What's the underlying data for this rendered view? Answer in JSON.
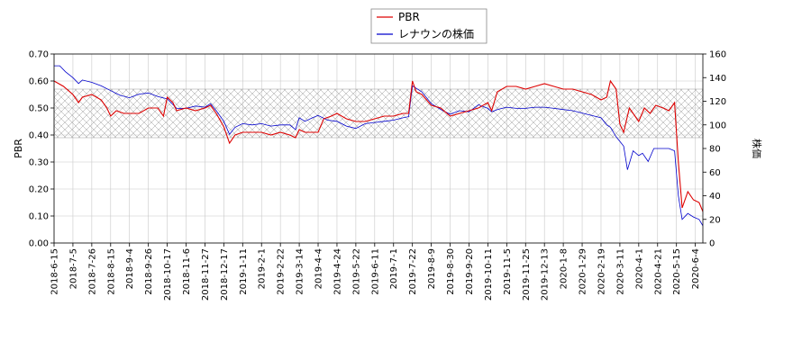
{
  "chart_data": {
    "type": "line",
    "xlabel": "",
    "ylabel_left": "PBR",
    "ylabel_right": "株価",
    "ylim_left": [
      0,
      0.7
    ],
    "ylim_right": [
      0,
      160
    ],
    "yticks_left": [
      "0.00",
      "0.10",
      "0.20",
      "0.30",
      "0.40",
      "0.50",
      "0.60",
      "0.70"
    ],
    "yticks_right": [
      "0",
      "20",
      "40",
      "60",
      "80",
      "100",
      "120",
      "140",
      "160"
    ],
    "x_ticks": [
      "2018-6-15",
      "2018-7-5",
      "2018-7-26",
      "2018-8-15",
      "2018-9-4",
      "2018-9-26",
      "2018-10-17",
      "2018-11-6",
      "2018-11-27",
      "2018-12-17",
      "2019-1-11",
      "2019-2-1",
      "2019-2-22",
      "2019-3-14",
      "2019-4-4",
      "2019-4-24",
      "2019-5-22",
      "2019-6-11",
      "2019-7-1",
      "2019-7-22",
      "2019-8-9",
      "2019-8-30",
      "2019-9-20",
      "2019-10-11",
      "2019-11-5",
      "2019-11-25",
      "2019-12-13",
      "2020-1-8",
      "2020-1-29",
      "2020-2-19",
      "2020-3-11",
      "2020-4-1",
      "2020-4-21",
      "2020-5-15",
      "2020-6-4"
    ],
    "grid": true,
    "legend_placement": "top-center",
    "band": {
      "axis": "left",
      "from": 0.39,
      "to": 0.57,
      "pattern": "crosshatch"
    },
    "series": [
      {
        "name": "PBR",
        "axis": "left",
        "color": "#dd0000",
        "points": [
          [
            0,
            0.6
          ],
          [
            0.5,
            0.58
          ],
          [
            1,
            0.55
          ],
          [
            1.3,
            0.52
          ],
          [
            1.5,
            0.54
          ],
          [
            2,
            0.55
          ],
          [
            2.5,
            0.53
          ],
          [
            2.8,
            0.5
          ],
          [
            3,
            0.47
          ],
          [
            3.3,
            0.49
          ],
          [
            3.7,
            0.48
          ],
          [
            4.5,
            0.48
          ],
          [
            5,
            0.5
          ],
          [
            5.5,
            0.5
          ],
          [
            5.8,
            0.47
          ],
          [
            6,
            0.54
          ],
          [
            6.3,
            0.52
          ],
          [
            6.5,
            0.49
          ],
          [
            7,
            0.5
          ],
          [
            7.5,
            0.49
          ],
          [
            8,
            0.5
          ],
          [
            8.3,
            0.51
          ],
          [
            8.6,
            0.48
          ],
          [
            9,
            0.43
          ],
          [
            9.3,
            0.37
          ],
          [
            9.6,
            0.4
          ],
          [
            10,
            0.41
          ],
          [
            10.5,
            0.41
          ],
          [
            11,
            0.41
          ],
          [
            11.5,
            0.4
          ],
          [
            12,
            0.41
          ],
          [
            12.5,
            0.4
          ],
          [
            12.8,
            0.39
          ],
          [
            13,
            0.42
          ],
          [
            13.3,
            0.41
          ],
          [
            14,
            0.41
          ],
          [
            14.3,
            0.46
          ],
          [
            14.7,
            0.47
          ],
          [
            15,
            0.48
          ],
          [
            15.5,
            0.46
          ],
          [
            16,
            0.45
          ],
          [
            16.5,
            0.45
          ],
          [
            17,
            0.46
          ],
          [
            17.5,
            0.47
          ],
          [
            18,
            0.47
          ],
          [
            18.5,
            0.48
          ],
          [
            18.8,
            0.48
          ],
          [
            19,
            0.6
          ],
          [
            19.2,
            0.56
          ],
          [
            19.5,
            0.55
          ],
          [
            20,
            0.51
          ],
          [
            20.5,
            0.5
          ],
          [
            21,
            0.47
          ],
          [
            21.5,
            0.48
          ],
          [
            22,
            0.49
          ],
          [
            22.5,
            0.5
          ],
          [
            23,
            0.52
          ],
          [
            23.2,
            0.49
          ],
          [
            23.5,
            0.56
          ],
          [
            24,
            0.58
          ],
          [
            24.5,
            0.58
          ],
          [
            25,
            0.57
          ],
          [
            25.5,
            0.58
          ],
          [
            26,
            0.59
          ],
          [
            26.5,
            0.58
          ],
          [
            27,
            0.57
          ],
          [
            27.5,
            0.57
          ],
          [
            28,
            0.56
          ],
          [
            28.5,
            0.55
          ],
          [
            29,
            0.53
          ],
          [
            29.3,
            0.54
          ],
          [
            29.5,
            0.6
          ],
          [
            29.8,
            0.57
          ],
          [
            30,
            0.44
          ],
          [
            30.2,
            0.41
          ],
          [
            30.5,
            0.5
          ],
          [
            30.8,
            0.47
          ],
          [
            31,
            0.45
          ],
          [
            31.3,
            0.5
          ],
          [
            31.6,
            0.48
          ],
          [
            31.9,
            0.51
          ],
          [
            32.3,
            0.5
          ],
          [
            32.6,
            0.49
          ],
          [
            32.9,
            0.52
          ],
          [
            33.1,
            0.3
          ],
          [
            33.3,
            0.13
          ],
          [
            33.6,
            0.19
          ],
          [
            33.9,
            0.16
          ],
          [
            34.2,
            0.15
          ],
          [
            34.5,
            0.1
          ],
          [
            34.7,
            0.05
          ]
        ]
      },
      {
        "name": "レナウンの株価",
        "axis": "right",
        "color": "#0000cc",
        "points": [
          [
            0,
            150
          ],
          [
            0.3,
            150
          ],
          [
            0.6,
            145
          ],
          [
            1,
            140
          ],
          [
            1.3,
            135
          ],
          [
            1.5,
            138
          ],
          [
            2,
            136
          ],
          [
            2.5,
            133
          ],
          [
            3,
            129
          ],
          [
            3.5,
            125
          ],
          [
            4,
            123
          ],
          [
            4.5,
            126
          ],
          [
            5,
            127
          ],
          [
            5.5,
            124
          ],
          [
            6,
            122
          ],
          [
            6.5,
            114
          ],
          [
            7,
            114
          ],
          [
            7.5,
            116
          ],
          [
            8,
            115
          ],
          [
            8.3,
            118
          ],
          [
            8.6,
            112
          ],
          [
            9,
            103
          ],
          [
            9.3,
            92
          ],
          [
            9.6,
            98
          ],
          [
            10,
            101
          ],
          [
            10.5,
            100
          ],
          [
            11,
            101
          ],
          [
            11.5,
            99
          ],
          [
            12,
            100
          ],
          [
            12.5,
            100
          ],
          [
            12.8,
            96
          ],
          [
            13,
            106
          ],
          [
            13.3,
            103
          ],
          [
            13.7,
            106
          ],
          [
            14,
            108
          ],
          [
            14.5,
            104
          ],
          [
            15,
            103
          ],
          [
            15.5,
            99
          ],
          [
            16,
            97
          ],
          [
            16.5,
            101
          ],
          [
            17,
            102
          ],
          [
            17.5,
            103
          ],
          [
            18,
            104
          ],
          [
            18.5,
            106
          ],
          [
            18.8,
            107
          ],
          [
            19,
            133
          ],
          [
            19.5,
            128
          ],
          [
            20,
            118
          ],
          [
            20.5,
            113
          ],
          [
            21,
            109
          ],
          [
            21.5,
            112
          ],
          [
            22,
            111
          ],
          [
            22.5,
            117
          ],
          [
            23,
            114
          ],
          [
            23.2,
            111
          ],
          [
            23.5,
            113
          ],
          [
            24,
            115
          ],
          [
            24.5,
            114
          ],
          [
            25,
            114
          ],
          [
            25.5,
            115
          ],
          [
            26,
            115
          ],
          [
            26.5,
            114
          ],
          [
            27,
            113
          ],
          [
            27.5,
            112
          ],
          [
            28,
            110
          ],
          [
            28.5,
            108
          ],
          [
            29,
            106
          ],
          [
            29.3,
            100
          ],
          [
            29.5,
            98
          ],
          [
            29.8,
            90
          ],
          [
            30,
            86
          ],
          [
            30.2,
            82
          ],
          [
            30.4,
            62
          ],
          [
            30.7,
            78
          ],
          [
            31,
            74
          ],
          [
            31.2,
            76
          ],
          [
            31.5,
            69
          ],
          [
            31.8,
            80
          ],
          [
            32.2,
            80
          ],
          [
            32.6,
            80
          ],
          [
            32.9,
            78
          ],
          [
            33.1,
            40
          ],
          [
            33.3,
            20
          ],
          [
            33.6,
            25
          ],
          [
            33.9,
            22
          ],
          [
            34.2,
            20
          ],
          [
            34.5,
            12
          ],
          [
            34.7,
            8
          ]
        ]
      }
    ]
  }
}
